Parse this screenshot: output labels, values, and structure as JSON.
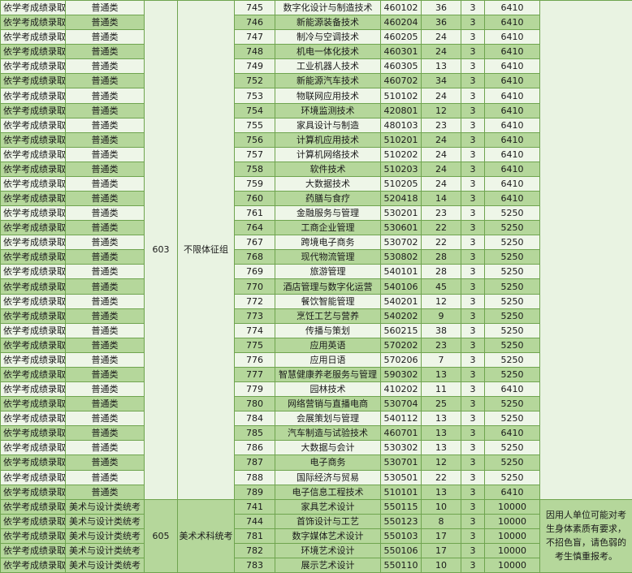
{
  "groups": [
    {
      "method": "依学考成绩录取",
      "category": "普通类",
      "group_code": "603",
      "restriction": "不限体征组",
      "note": "",
      "rows": [
        [
          "745",
          "数字化设计与制造技术",
          "460102",
          "36",
          "3",
          "6410"
        ],
        [
          "746",
          "新能源装备技术",
          "460204",
          "36",
          "3",
          "6410"
        ],
        [
          "747",
          "制冷与空调技术",
          "460205",
          "24",
          "3",
          "6410"
        ],
        [
          "748",
          "机电一体化技术",
          "460301",
          "24",
          "3",
          "6410"
        ],
        [
          "749",
          "工业机器人技术",
          "460305",
          "13",
          "3",
          "6410"
        ],
        [
          "752",
          "新能源汽车技术",
          "460702",
          "34",
          "3",
          "6410"
        ],
        [
          "753",
          "物联网应用技术",
          "510102",
          "24",
          "3",
          "6410"
        ],
        [
          "754",
          "环境监测技术",
          "420801",
          "12",
          "3",
          "6410"
        ],
        [
          "755",
          "家具设计与制造",
          "480103",
          "23",
          "3",
          "6410"
        ],
        [
          "756",
          "计算机应用技术",
          "510201",
          "24",
          "3",
          "6410"
        ],
        [
          "757",
          "计算机网络技术",
          "510202",
          "24",
          "3",
          "6410"
        ],
        [
          "758",
          "软件技术",
          "510203",
          "24",
          "3",
          "6410"
        ],
        [
          "759",
          "大数据技术",
          "510205",
          "24",
          "3",
          "6410"
        ],
        [
          "760",
          "药膳与食疗",
          "520418",
          "14",
          "3",
          "6410"
        ],
        [
          "761",
          "金融服务与管理",
          "530201",
          "23",
          "3",
          "5250"
        ],
        [
          "764",
          "工商企业管理",
          "530601",
          "22",
          "3",
          "5250"
        ],
        [
          "767",
          "跨境电子商务",
          "530702",
          "22",
          "3",
          "5250"
        ],
        [
          "768",
          "现代物流管理",
          "530802",
          "28",
          "3",
          "5250"
        ],
        [
          "769",
          "旅游管理",
          "540101",
          "28",
          "3",
          "5250"
        ],
        [
          "770",
          "酒店管理与数字化运营",
          "540106",
          "45",
          "3",
          "5250"
        ],
        [
          "772",
          "餐饮智能管理",
          "540201",
          "12",
          "3",
          "5250"
        ],
        [
          "773",
          "烹饪工艺与营养",
          "540202",
          "9",
          "3",
          "5250"
        ],
        [
          "774",
          "传播与策划",
          "560215",
          "38",
          "3",
          "5250"
        ],
        [
          "775",
          "应用英语",
          "570202",
          "23",
          "3",
          "5250"
        ],
        [
          "776",
          "应用日语",
          "570206",
          "7",
          "3",
          "5250"
        ],
        [
          "777",
          "智慧健康养老服务与管理",
          "590302",
          "13",
          "3",
          "5250"
        ],
        [
          "779",
          "园林技术",
          "410202",
          "11",
          "3",
          "6410"
        ],
        [
          "780",
          "网络营销与直播电商",
          "530704",
          "25",
          "3",
          "5250"
        ],
        [
          "784",
          "会展策划与管理",
          "540112",
          "13",
          "3",
          "5250"
        ],
        [
          "785",
          "汽车制造与试验技术",
          "460701",
          "13",
          "3",
          "6410"
        ],
        [
          "786",
          "大数据与会计",
          "530302",
          "13",
          "3",
          "5250"
        ],
        [
          "787",
          "电子商务",
          "530701",
          "12",
          "3",
          "5250"
        ],
        [
          "788",
          "国际经济与贸易",
          "530501",
          "22",
          "3",
          "5250"
        ],
        [
          "789",
          "电子信息工程技术",
          "510101",
          "13",
          "3",
          "6410"
        ]
      ]
    },
    {
      "method": "依学考成绩录取",
      "category": "美术与设计类统考",
      "group_code": "605",
      "restriction": "美术术科统考",
      "note": "因用人单位可能对考生身体素质有要求，不招色盲，请色弱的考生慎重报考。",
      "rows": [
        [
          "741",
          "家具艺术设计",
          "550115",
          "10",
          "3",
          "10000"
        ],
        [
          "744",
          "首饰设计与工艺",
          "550123",
          "8",
          "3",
          "10000"
        ],
        [
          "781",
          "数字媒体艺术设计",
          "550103",
          "17",
          "3",
          "10000"
        ],
        [
          "782",
          "环境艺术设计",
          "550106",
          "17",
          "3",
          "10000"
        ],
        [
          "783",
          "展示艺术设计",
          "550110",
          "10",
          "3",
          "10000"
        ]
      ]
    }
  ],
  "colors": {
    "row_light": "#eef6e8",
    "row_dark": "#b5d79b",
    "border": "#6fa44f"
  }
}
